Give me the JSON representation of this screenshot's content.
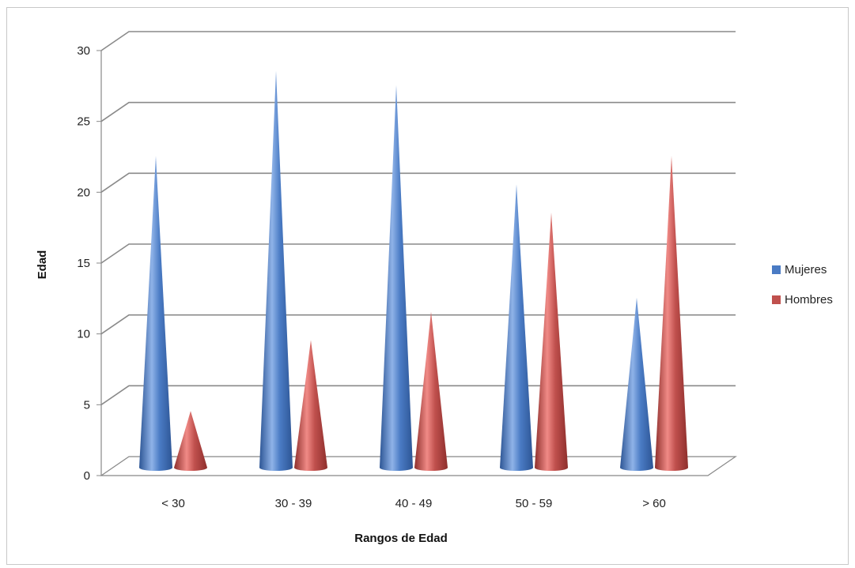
{
  "chart_data": {
    "type": "bar",
    "mark_shape": "3d-cone",
    "title": "",
    "xlabel": "Rangos de Edad",
    "ylabel": "Edad",
    "categories": [
      "< 30",
      "30 - 39",
      "40 - 49",
      "50 - 59",
      "> 60"
    ],
    "series": [
      {
        "name": "Mujeres",
        "color": "#4a7bc4",
        "values": [
          22,
          28,
          27,
          20,
          12
        ]
      },
      {
        "name": "Hombres",
        "color": "#c0504d",
        "values": [
          4,
          9,
          11,
          18,
          22
        ]
      }
    ],
    "ylim": [
      0,
      30
    ],
    "yticks": [
      0,
      5,
      10,
      15,
      20,
      25,
      30
    ],
    "grid": true,
    "legend_position": "right"
  }
}
